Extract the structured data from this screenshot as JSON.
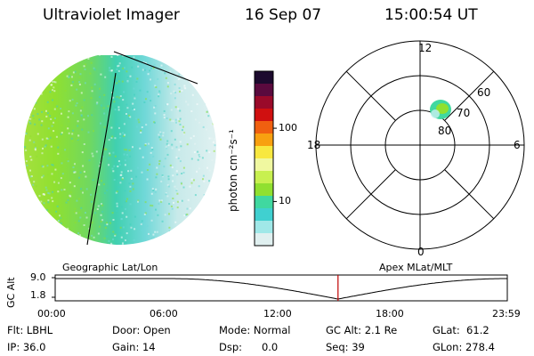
{
  "header": {
    "instrument": "Ultraviolet Imager",
    "date": "16 Sep 07",
    "time": "15:00:54 UT"
  },
  "colorbar": {
    "label": "photon cm⁻²s⁻¹",
    "ticks": [
      {
        "value": 100,
        "label": "100"
      },
      {
        "value": 10,
        "label": "10"
      }
    ],
    "range": [
      2.5,
      600
    ],
    "scale": "log",
    "colors": [
      "#1c0a2e",
      "#5a0a3e",
      "#9a0a2a",
      "#d01010",
      "#f06010",
      "#f8a010",
      "#f8e840",
      "#f0f8a0",
      "#c8f050",
      "#90e030",
      "#40d8a0",
      "#40d0d0",
      "#a0e8e8",
      "#e0f0f0"
    ]
  },
  "polar": {
    "mlt_labels": {
      "top": "12",
      "right": "6",
      "bottom": "0",
      "left": "18"
    },
    "lat_labels": [
      "60",
      "70",
      "80"
    ]
  },
  "timeline": {
    "y_label": "GC Alt",
    "y_ticks": [
      "9.0",
      "1.8"
    ],
    "left_caption": "Geographic Lat/Lon",
    "right_caption": "Apex MLat/MLT",
    "x_ticks": [
      "00:00",
      "06:00",
      "12:00",
      "18:00",
      "23:59"
    ],
    "marker_time_hours": 15.015
  },
  "info": {
    "col1": [
      "Flt: LBHL",
      "IP: 36.0"
    ],
    "col2": [
      "Door: Open",
      "Gain: 14"
    ],
    "col3": [
      "Mode: Normal",
      "Dsp:      0.0"
    ],
    "col4": [
      "GC Alt: 2.1 Re",
      "Seq: 39"
    ],
    "col5": [
      "GLat:  61.2",
      "GLon: 278.4"
    ]
  },
  "colors": {
    "marker": "#c00000",
    "gridline": "#000000"
  }
}
